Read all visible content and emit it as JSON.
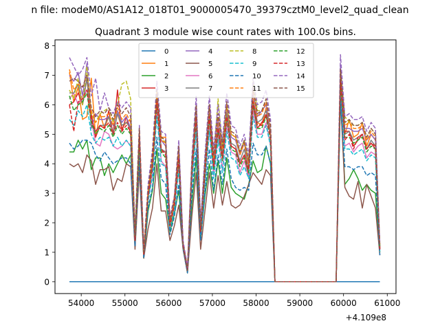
{
  "chart_data": {
    "type": "line",
    "suptitle": "n file: modeM0/AS1A12_018T01_9000005470_39379cztM0_level2_quad_clean",
    "title": "Quadrant 3 module wise count rates with 100.0s bins.",
    "xlabel": "",
    "ylabel": "",
    "x_offset_label": "+4.109e8",
    "xlim": [
      53400,
      61200
    ],
    "ylim": [
      -0.4,
      8.2
    ],
    "xticks": [
      54000,
      55000,
      56000,
      57000,
      58000,
      59000,
      60000,
      61000
    ],
    "yticks": [
      0,
      1,
      2,
      3,
      4,
      5,
      6,
      7,
      8
    ],
    "grid": false,
    "legend_location": "top-center",
    "x": [
      53730,
      53830,
      53930,
      54030,
      54130,
      54230,
      54330,
      54430,
      54530,
      54630,
      54730,
      54830,
      54930,
      55030,
      55130,
      55230,
      55330,
      55430,
      55530,
      55630,
      55730,
      55830,
      55930,
      56030,
      56130,
      56230,
      56330,
      56430,
      56530,
      56630,
      56730,
      56830,
      56930,
      57030,
      57130,
      57230,
      57330,
      57430,
      57530,
      57630,
      57730,
      57830,
      57930,
      58030,
      58130,
      58230,
      58330,
      58430,
      58630,
      59830,
      59930,
      60030,
      60130,
      60230,
      60330,
      60430,
      60530,
      60630,
      60730,
      60830
    ],
    "series": [
      {
        "name": "0",
        "color": "#1f77b4",
        "dash": false,
        "values": [
          0,
          0,
          0,
          0,
          0,
          0,
          0,
          0,
          0,
          0,
          0,
          0,
          0,
          0,
          0,
          0,
          0,
          0,
          0,
          0,
          0,
          0,
          0,
          0,
          0,
          0,
          0,
          0,
          0,
          0,
          0,
          0,
          0,
          0,
          0,
          0,
          0,
          0,
          0,
          0,
          0,
          0,
          0,
          0,
          0,
          0,
          0,
          0,
          0,
          0,
          0,
          0,
          0,
          0,
          0,
          0,
          0,
          0,
          0,
          0
        ]
      },
      {
        "name": "1",
        "color": "#ff7f0e",
        "dash": false,
        "values": [
          7.1,
          6.1,
          6.6,
          5.5,
          5.6,
          6.9,
          4.9,
          5.7,
          5.2,
          5.6,
          5.0,
          5.7,
          5.2,
          5.4,
          5.5,
          1.2,
          5.0,
          0.9,
          3.0,
          4.0,
          6.1,
          4.9,
          4.9,
          1.9,
          2.9,
          4.5,
          1.3,
          0.5,
          4.0,
          5.9,
          1.9,
          4.0,
          5.8,
          4.0,
          5.4,
          4.4,
          5.9,
          5.0,
          4.9,
          4.4,
          4.7,
          3.9,
          6.2,
          5.4,
          5.3,
          5.9,
          5.1,
          0,
          0,
          0,
          6.9,
          5.0,
          5.5,
          4.9,
          5.0,
          5.4,
          4.6,
          5.0,
          4.8,
          1.2
        ]
      },
      {
        "name": "2",
        "color": "#2ca02c",
        "dash": false,
        "values": [
          4.4,
          4.4,
          4.8,
          4.5,
          4.8,
          3.8,
          4.2,
          4.2,
          3.6,
          4.0,
          3.7,
          4.0,
          4.3,
          4.0,
          4.3,
          1.4,
          4.3,
          0.8,
          2.4,
          3.1,
          4.5,
          3.0,
          2.8,
          1.7,
          2.3,
          3.1,
          1.2,
          0.3,
          2.6,
          4.2,
          1.5,
          2.9,
          4.0,
          3.0,
          4.1,
          3.0,
          4.2,
          3.2,
          3.0,
          2.9,
          2.8,
          3.3,
          4.1,
          3.7,
          3.8,
          4.6,
          4.0,
          0,
          0,
          0,
          6.3,
          3.3,
          3.5,
          3.8,
          3.5,
          3.1,
          3.3,
          3.1,
          3.0,
          1.0
        ]
      },
      {
        "name": "3",
        "color": "#d62728",
        "dash": false,
        "values": [
          6.0,
          6.1,
          6.4,
          6.0,
          6.9,
          5.7,
          4.9,
          5.3,
          5.2,
          5.8,
          5.0,
          6.5,
          5.1,
          5.6,
          5.0,
          1.2,
          4.9,
          0.9,
          2.8,
          4.0,
          5.9,
          4.4,
          4.4,
          1.9,
          2.5,
          4.0,
          1.2,
          0.4,
          3.5,
          5.4,
          1.7,
          3.6,
          5.6,
          3.8,
          5.1,
          4.2,
          5.6,
          4.6,
          4.5,
          4.0,
          4.3,
          3.6,
          6.0,
          5.2,
          5.4,
          5.6,
          5.0,
          0,
          0,
          0,
          6.5,
          5.1,
          5.1,
          4.6,
          4.8,
          5.0,
          4.5,
          4.7,
          4.5,
          1.1
        ]
      },
      {
        "name": "4",
        "color": "#9467bd",
        "dash": false,
        "values": [
          7.0,
          6.8,
          7.1,
          6.3,
          7.4,
          5.2,
          5.7,
          5.5,
          5.5,
          5.6,
          5.3,
          5.8,
          5.4,
          5.6,
          5.2,
          1.5,
          4.9,
          1.0,
          3.0,
          4.2,
          6.3,
          4.8,
          4.6,
          2.0,
          2.7,
          4.4,
          1.3,
          0.4,
          3.9,
          5.9,
          1.8,
          3.9,
          5.9,
          4.1,
          5.5,
          4.4,
          5.9,
          4.9,
          4.8,
          4.3,
          4.7,
          4.0,
          6.4,
          5.6,
          5.8,
          6.0,
          5.1,
          0,
          0,
          0,
          7.3,
          5.2,
          5.2,
          5.1,
          5.1,
          5.2,
          4.8,
          5.0,
          4.8,
          1.2
        ]
      },
      {
        "name": "5",
        "color": "#8c564b",
        "dash": false,
        "values": [
          4.0,
          3.9,
          4.0,
          3.7,
          4.3,
          4.1,
          3.3,
          3.8,
          3.8,
          3.9,
          3.1,
          3.5,
          3.4,
          4.0,
          3.9,
          1.1,
          3.8,
          0.8,
          1.8,
          2.5,
          4.0,
          2.4,
          2.4,
          1.4,
          1.9,
          2.6,
          1.1,
          0.3,
          2.2,
          3.7,
          1.1,
          2.4,
          3.7,
          2.5,
          3.6,
          2.6,
          3.4,
          2.6,
          2.5,
          2.6,
          2.9,
          3.3,
          3.7,
          3.5,
          3.3,
          3.8,
          3.6,
          0,
          0,
          0,
          6.2,
          3.2,
          2.9,
          2.8,
          3.4,
          2.5,
          3.3,
          2.9,
          2.5,
          0.9
        ]
      },
      {
        "name": "6",
        "color": "#e377c2",
        "dash": false,
        "values": [
          6.2,
          6.4,
          6.0,
          6.3,
          6.5,
          5.5,
          4.7,
          4.6,
          5.1,
          5.0,
          4.6,
          4.5,
          4.6,
          4.8,
          4.6,
          1.3,
          4.6,
          0.9,
          2.8,
          3.6,
          5.8,
          4.1,
          3.9,
          1.8,
          2.5,
          3.8,
          1.2,
          0.4,
          3.3,
          5.2,
          1.6,
          3.4,
          5.2,
          3.6,
          4.9,
          3.8,
          5.3,
          4.4,
          4.3,
          3.7,
          4.1,
          3.5,
          5.8,
          5.0,
          5.0,
          5.4,
          4.6,
          0,
          0,
          0,
          6.5,
          4.6,
          4.7,
          4.4,
          4.6,
          4.7,
          4.2,
          4.4,
          4.3,
          1.1
        ]
      },
      {
        "name": "7",
        "color": "#7f7f7f",
        "dash": false,
        "values": [
          6.4,
          6.4,
          6.7,
          6.0,
          6.9,
          5.3,
          5.1,
          5.3,
          5.3,
          5.6,
          5.0,
          5.7,
          5.3,
          5.4,
          5.2,
          1.4,
          5.0,
          0.9,
          2.9,
          4.0,
          6.2,
          4.5,
          4.4,
          1.9,
          2.6,
          4.2,
          1.2,
          0.4,
          3.7,
          5.6,
          1.7,
          3.7,
          5.7,
          3.9,
          5.2,
          4.3,
          5.7,
          4.7,
          4.6,
          4.1,
          4.5,
          3.8,
          6.1,
          5.4,
          5.5,
          5.8,
          5.0,
          0,
          0,
          0,
          6.9,
          5.0,
          5.1,
          4.8,
          4.9,
          5.0,
          4.5,
          4.8,
          4.6,
          1.1
        ]
      },
      {
        "name": "8",
        "color": "#bcbd22",
        "dash": true,
        "values": [
          6.5,
          6.2,
          6.9,
          6.0,
          7.3,
          5.7,
          5.4,
          5.7,
          5.8,
          5.9,
          5.4,
          6.0,
          6.7,
          6.8,
          6.2,
          1.6,
          4.9,
          1.0,
          3.1,
          4.3,
          6.5,
          4.9,
          4.7,
          2.1,
          2.8,
          4.5,
          1.3,
          0.4,
          4.0,
          6.0,
          1.8,
          4.0,
          6.0,
          4.2,
          6.2,
          4.5,
          6.0,
          5.0,
          4.9,
          4.4,
          4.8,
          4.1,
          6.8,
          5.8,
          5.8,
          6.2,
          5.2,
          0,
          0,
          0,
          7.2,
          5.6,
          5.4,
          5.3,
          5.3,
          5.4,
          4.9,
          5.2,
          5.0,
          1.2
        ]
      },
      {
        "name": "9",
        "color": "#17becf",
        "dash": true,
        "values": [
          5.5,
          5.3,
          5.8,
          5.6,
          6.0,
          5.0,
          4.7,
          4.9,
          4.8,
          4.9,
          4.6,
          4.9,
          4.6,
          4.8,
          4.6,
          1.3,
          4.6,
          0.9,
          2.7,
          3.6,
          5.6,
          4.0,
          3.9,
          1.8,
          2.4,
          3.8,
          1.2,
          0.4,
          3.3,
          5.1,
          1.6,
          3.3,
          5.1,
          3.5,
          4.8,
          3.7,
          5.1,
          4.2,
          4.1,
          3.6,
          3.9,
          3.5,
          5.6,
          4.9,
          4.9,
          5.3,
          4.6,
          0,
          0,
          0,
          6.3,
          4.5,
          4.5,
          4.3,
          4.4,
          4.5,
          4.1,
          4.3,
          4.2,
          1.0
        ]
      },
      {
        "name": "10",
        "color": "#1f77b4",
        "dash": true,
        "values": [
          4.7,
          4.5,
          4.6,
          4.8,
          4.8,
          4.7,
          4.3,
          4.1,
          4.4,
          4.2,
          4.0,
          4.1,
          4.2,
          4.2,
          4.0,
          1.2,
          4.2,
          0.8,
          2.5,
          3.2,
          4.9,
          3.5,
          3.3,
          1.6,
          2.2,
          3.3,
          1.1,
          0.3,
          2.9,
          4.5,
          1.4,
          3.0,
          4.5,
          3.1,
          4.3,
          3.3,
          4.5,
          3.5,
          3.2,
          3.1,
          3.2,
          3.1,
          4.7,
          4.3,
          4.3,
          4.6,
          4.0,
          0,
          0,
          0,
          6.2,
          3.9,
          3.9,
          3.8,
          3.9,
          3.9,
          3.6,
          3.7,
          3.6,
          0.9
        ]
      },
      {
        "name": "11",
        "color": "#ff7f0e",
        "dash": true,
        "values": [
          7.2,
          6.5,
          6.7,
          6.6,
          7.0,
          5.8,
          5.4,
          5.6,
          5.6,
          5.7,
          5.3,
          5.9,
          5.5,
          5.7,
          5.4,
          1.5,
          5.1,
          1.0,
          3.1,
          4.2,
          6.4,
          4.8,
          4.7,
          2.0,
          2.7,
          4.4,
          1.3,
          0.4,
          3.9,
          5.9,
          1.8,
          4.0,
          5.9,
          4.2,
          5.6,
          4.5,
          6.0,
          5.0,
          4.9,
          4.3,
          4.7,
          4.0,
          6.5,
          5.6,
          5.7,
          6.1,
          5.2,
          0,
          0,
          0,
          7.1,
          5.3,
          5.4,
          5.2,
          5.2,
          5.3,
          4.8,
          5.1,
          4.9,
          1.2
        ]
      },
      {
        "name": "12",
        "color": "#2ca02c",
        "dash": true,
        "values": [
          6.3,
          5.8,
          6.0,
          6.1,
          6.4,
          5.4,
          5.0,
          5.2,
          5.1,
          5.3,
          4.9,
          5.3,
          5.0,
          5.2,
          5.0,
          1.4,
          4.8,
          0.9,
          2.9,
          3.9,
          6.0,
          4.4,
          4.2,
          1.9,
          2.6,
          4.1,
          1.2,
          0.4,
          3.6,
          5.5,
          1.7,
          3.6,
          5.5,
          3.8,
          5.1,
          4.1,
          5.5,
          4.5,
          4.4,
          3.9,
          4.2,
          3.7,
          6.0,
          5.2,
          5.2,
          5.6,
          4.8,
          0,
          0,
          0,
          6.7,
          4.9,
          4.9,
          4.7,
          4.8,
          4.9,
          4.4,
          4.6,
          4.5,
          1.1
        ]
      },
      {
        "name": "13",
        "color": "#d62728",
        "dash": true,
        "values": [
          6.0,
          5.1,
          6.1,
          6.2,
          6.5,
          5.5,
          5.1,
          5.3,
          5.2,
          5.4,
          5.0,
          5.4,
          5.1,
          5.3,
          5.1,
          1.4,
          4.9,
          0.9,
          2.9,
          3.9,
          6.1,
          4.5,
          4.3,
          1.9,
          2.6,
          4.2,
          1.2,
          0.4,
          3.7,
          5.6,
          1.7,
          3.7,
          5.6,
          3.9,
          5.2,
          4.2,
          5.6,
          4.6,
          4.5,
          4.0,
          4.3,
          3.8,
          6.1,
          5.3,
          5.3,
          5.7,
          4.9,
          0,
          0,
          0,
          6.8,
          4.8,
          5.0,
          4.5,
          4.9,
          5.0,
          4.5,
          4.7,
          4.6,
          1.1
        ]
      },
      {
        "name": "14",
        "color": "#9467bd",
        "dash": true,
        "values": [
          7.6,
          7.3,
          7.0,
          7.2,
          7.6,
          6.3,
          6.9,
          5.8,
          6.4,
          5.9,
          5.7,
          6.1,
          5.9,
          6.1,
          5.9,
          1.7,
          5.3,
          1.1,
          3.3,
          4.5,
          6.8,
          5.1,
          5.0,
          2.2,
          2.9,
          4.8,
          1.4,
          0.5,
          4.2,
          6.3,
          2.0,
          4.3,
          6.3,
          4.5,
          6.0,
          4.8,
          6.4,
          5.3,
          5.2,
          4.6,
          5.0,
          4.3,
          6.9,
          6.0,
          6.1,
          6.5,
          5.5,
          0,
          0,
          0,
          7.7,
          5.6,
          5.7,
          5.5,
          5.5,
          5.6,
          5.1,
          5.4,
          5.2,
          1.3
        ]
      },
      {
        "name": "15",
        "color": "#8c564b",
        "dash": true,
        "values": [
          6.8,
          6.9,
          6.8,
          6.6,
          7.0,
          5.9,
          5.6,
          5.8,
          5.7,
          5.9,
          5.5,
          6.0,
          5.7,
          5.9,
          5.6,
          1.6,
          5.2,
          1.0,
          3.1,
          4.3,
          6.5,
          4.9,
          4.8,
          2.1,
          2.8,
          4.6,
          1.3,
          0.4,
          4.0,
          6.0,
          1.9,
          4.1,
          6.0,
          4.3,
          5.7,
          4.6,
          6.1,
          5.1,
          5.0,
          4.4,
          4.8,
          4.1,
          6.6,
          5.7,
          5.8,
          6.2,
          5.3,
          0,
          0,
          0,
          7.2,
          5.4,
          5.5,
          5.3,
          5.3,
          5.4,
          4.9,
          5.2,
          5.0,
          1.2
        ]
      }
    ]
  }
}
